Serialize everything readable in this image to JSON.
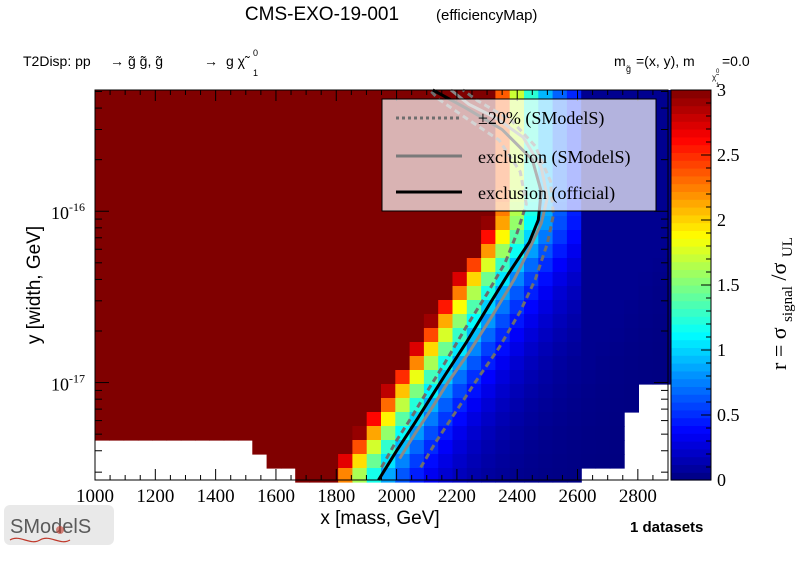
{
  "header": {
    "title": "CMS-EXO-19-001",
    "subtitle": "(efficiencyMap)",
    "process_prefix": "T2Disp: pp",
    "process_rhs1": "g̃ g̃, g̃",
    "process_rhs2": "g χ̃",
    "process_sup": "0",
    "process_sub": "1",
    "mass_left": "m",
    "mass_left_sub": "g̃",
    "mass_mid": "=(x, y), m",
    "mass_right": "=0.0",
    "mass_right_sub_sub": "χ̃",
    "mass_right_sub_sup": "0",
    "mass_right_sub_idx": "1",
    "datasets": "1 datasets",
    "logo_text": "SModelS"
  },
  "legend": {
    "items": [
      {
        "label": "±20% (SModelS)",
        "style": "dotted",
        "color": "#6e6e6e"
      },
      {
        "label": "exclusion (SModelS)",
        "style": "solid",
        "color": "#7a7a7a"
      },
      {
        "label": "exclusion (official)",
        "style": "solid",
        "color": "#000000"
      }
    ]
  },
  "colors": {
    "max": "#800000",
    "palette": [
      "#00007f",
      "#0000ff",
      "#007fff",
      "#00ffff",
      "#7fff7f",
      "#ffff00",
      "#ff7f00",
      "#ff0000",
      "#7f0000"
    ]
  },
  "chart_data": {
    "type": "heatmap",
    "title": "CMS-EXO-19-001",
    "xlabel": "x [mass, GeV]",
    "ylabel": "y [width, GeV]",
    "zlabel_main": "r = σ",
    "zlabel_sub1": "signal",
    "zlabel_slash": "/σ",
    "zlabel_sub2": "UL",
    "x_range": [
      1000,
      2900
    ],
    "x_ticks": [
      1000,
      1200,
      1400,
      1600,
      1800,
      2000,
      2200,
      2400,
      2600,
      2800
    ],
    "x_tick_labels": [
      "1000",
      "1200",
      "1400",
      "1600",
      "1800",
      "2000",
      "2200",
      "2400",
      "2600",
      "2800"
    ],
    "y_scale": "log",
    "y_range": [
      2.7e-18,
      5.1e-16
    ],
    "y_tick_labels": [
      {
        "value": 1e-16,
        "mantissa": "10",
        "exponent": "-16"
      },
      {
        "value": 1e-17,
        "mantissa": "10",
        "exponent": "-17"
      }
    ],
    "z_range": [
      0,
      3
    ],
    "z_ticks": [
      0,
      0.5,
      1,
      1.5,
      2,
      2.5,
      3
    ],
    "z_tick_labels": [
      "0",
      "0.5",
      "1",
      "1.5",
      "2",
      "2.5",
      "3"
    ],
    "exclusion_official": [
      [
        1940,
        2.7e-18
      ],
      [
        2000,
        4e-18
      ],
      [
        2060,
        5.8e-18
      ],
      [
        2110,
        8e-18
      ],
      [
        2160,
        1.1e-17
      ],
      [
        2230,
        1.7e-17
      ],
      [
        2310,
        2.9e-17
      ],
      [
        2370,
        4.3e-17
      ],
      [
        2440,
        6.6e-17
      ],
      [
        2470,
        8.9e-17
      ],
      [
        2480,
        1.3e-16
      ],
      [
        2450,
        2e-16
      ],
      [
        2350,
        3e-16
      ],
      [
        2230,
        4e-16
      ],
      [
        2120,
        5.1e-16
      ]
    ],
    "exclusion_smodels": [
      [
        2010,
        3.6e-18
      ],
      [
        2060,
        5e-18
      ],
      [
        2110,
        6.8e-18
      ],
      [
        2170,
        1e-17
      ],
      [
        2240,
        1.5e-17
      ],
      [
        2320,
        2.5e-17
      ],
      [
        2390,
        4e-17
      ],
      [
        2440,
        6e-17
      ],
      [
        2480,
        8.5e-17
      ],
      [
        2500,
        1.2e-16
      ],
      [
        2480,
        1.8e-16
      ],
      [
        2420,
        2.7e-16
      ],
      [
        2330,
        3.5e-16
      ],
      [
        2240,
        4.2e-16
      ],
      [
        2180,
        5.1e-16
      ]
    ],
    "exclusion_smodels_plus20": [
      [
        2080,
        3.2e-18
      ],
      [
        2130,
        4.5e-18
      ],
      [
        2190,
        6.5e-18
      ],
      [
        2260,
        1e-17
      ],
      [
        2340,
        1.6e-17
      ],
      [
        2410,
        2.6e-17
      ],
      [
        2460,
        4e-17
      ],
      [
        2500,
        6.5e-17
      ],
      [
        2520,
        9.5e-17
      ],
      [
        2510,
        1.5e-16
      ],
      [
        2460,
        2.4e-16
      ],
      [
        2380,
        3.4e-16
      ],
      [
        2270,
        4.4e-16
      ],
      [
        2220,
        5.1e-16
      ]
    ],
    "exclusion_smodels_minus20": [
      [
        1950,
        3.2e-18
      ],
      [
        2000,
        4.6e-18
      ],
      [
        2050,
        6.3e-18
      ],
      [
        2100,
        8.8e-18
      ],
      [
        2160,
        1.3e-17
      ],
      [
        2230,
        2.1e-17
      ],
      [
        2300,
        3.3e-17
      ],
      [
        2360,
        5e-17
      ],
      [
        2400,
        7.5e-17
      ],
      [
        2430,
        1.1e-16
      ],
      [
        2410,
        1.7e-16
      ],
      [
        2340,
        2.6e-16
      ],
      [
        2230,
        3.5e-16
      ],
      [
        2140,
        4.5e-16
      ],
      [
        2110,
        5.1e-16
      ]
    ]
  }
}
